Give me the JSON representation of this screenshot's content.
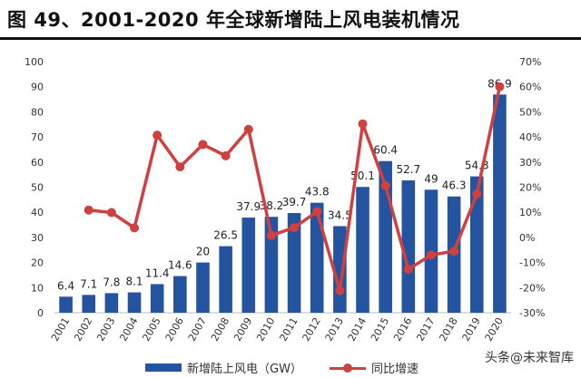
{
  "chart_data": {
    "type": "bar+line",
    "title": "图 49、2001-2020 年全球新增陆上风电装机情况",
    "categories": [
      "2001",
      "2002",
      "2003",
      "2004",
      "2005",
      "2006",
      "2007",
      "2008",
      "2009",
      "2010",
      "2011",
      "2012",
      "2013",
      "2014",
      "2015",
      "2016",
      "2017",
      "2018",
      "2019",
      "2020"
    ],
    "series": [
      {
        "name": "新增陆上风电（GW）",
        "type": "bar",
        "axis": "left",
        "color": "#2453a0",
        "values": [
          6.4,
          7.1,
          7.8,
          8.1,
          11.4,
          14.6,
          20,
          26.5,
          37.9,
          38.2,
          39.7,
          43.8,
          34.5,
          50.1,
          60.4,
          52.7,
          49,
          46.3,
          54.3,
          86.9
        ],
        "labels": [
          "6.4",
          "7.1",
          "7.8",
          "8.1",
          "11.4",
          "14.6",
          "20",
          "26.5",
          "37.9",
          "38.2",
          "39.7",
          "43.8",
          "34.5",
          "50.1",
          "60.4",
          "52.7",
          "49",
          "46.3",
          "54.3",
          "86.9"
        ]
      },
      {
        "name": "同比增速",
        "type": "line",
        "axis": "right",
        "color": "#d0403f",
        "unit": "%",
        "values": [
          null,
          10.9,
          9.9,
          3.8,
          40.7,
          28.1,
          37.0,
          32.5,
          43.0,
          0.8,
          3.9,
          10.3,
          -21.2,
          45.2,
          20.6,
          -12.7,
          -7.0,
          -5.5,
          17.3,
          60.0
        ]
      }
    ],
    "left_axis": {
      "ylim": [
        0,
        100
      ],
      "ticks": [
        "0",
        "10",
        "20",
        "30",
        "40",
        "50",
        "60",
        "70",
        "80",
        "90",
        "100"
      ]
    },
    "right_axis": {
      "ylim": [
        -30,
        70
      ],
      "ticks": [
        "-30%",
        "-20%",
        "-10%",
        "0%",
        "10%",
        "20%",
        "30%",
        "40%",
        "50%",
        "60%",
        "70%"
      ]
    },
    "grid": false,
    "legend": "bottom"
  },
  "watermark": "头条@未来智库"
}
